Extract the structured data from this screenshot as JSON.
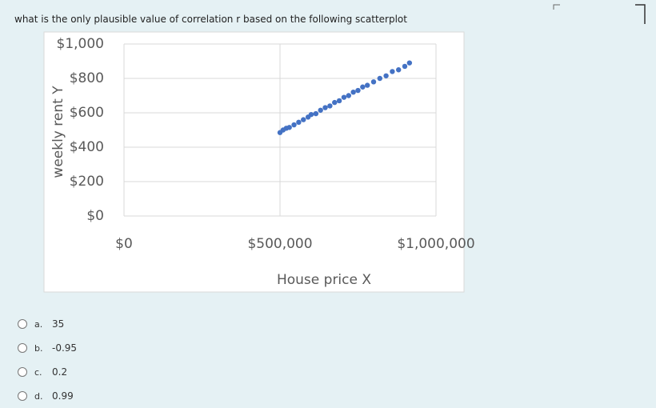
{
  "question": "what is the only plausible value of correlation r based on the following scatterplot",
  "chart_data": {
    "type": "scatter",
    "x_label": "House price X",
    "y_label": "weekly rent Y",
    "color": "#4472c4",
    "grid": true,
    "x": [
      500000,
      510000,
      520000,
      530000,
      545000,
      560000,
      575000,
      590000,
      600000,
      615000,
      630000,
      645000,
      660000,
      675000,
      690000,
      705000,
      720000,
      735000,
      750000,
      765000,
      780000,
      800000,
      820000,
      840000,
      860000,
      880000,
      900000,
      915000
    ],
    "values": [
      485,
      500,
      510,
      515,
      530,
      545,
      560,
      575,
      590,
      595,
      615,
      630,
      640,
      660,
      670,
      690,
      700,
      720,
      730,
      750,
      760,
      780,
      800,
      815,
      840,
      850,
      870,
      890
    ],
    "xlim": [
      0,
      1000000
    ],
    "xticks": [
      {
        "value": 0,
        "label": "$0"
      },
      {
        "value": 500000,
        "label": "$500,000"
      },
      {
        "value": 1000000,
        "label": "$1,000,000"
      }
    ],
    "ylim": [
      0,
      1000
    ],
    "yticks": [
      {
        "value": 0,
        "label": "$0"
      },
      {
        "value": 200,
        "label": "$200"
      },
      {
        "value": 400,
        "label": "$400"
      },
      {
        "value": 600,
        "label": "$600"
      },
      {
        "value": 800,
        "label": "$800"
      },
      {
        "value": 1000,
        "label": "$1,000"
      }
    ]
  },
  "options": [
    {
      "letter": "a.",
      "text": "35"
    },
    {
      "letter": "b.",
      "text": "-0.95"
    },
    {
      "letter": "c.",
      "text": "0.2"
    },
    {
      "letter": "d.",
      "text": "0.99"
    }
  ]
}
